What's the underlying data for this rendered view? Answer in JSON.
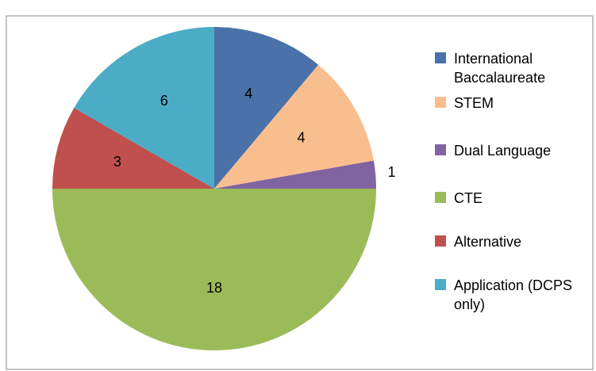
{
  "chart_data": {
    "type": "pie",
    "categories": [
      "International Baccalaureate",
      "STEM",
      "Dual Language",
      "CTE",
      "Alternative",
      "Application (DCPS only)"
    ],
    "values": [
      4,
      4,
      1,
      18,
      3,
      6
    ],
    "colors": [
      "#4a72a8",
      "#f9be8e",
      "#8064a2",
      "#9bbb59",
      "#c0504d",
      "#4bacc6"
    ],
    "legend": "right"
  }
}
